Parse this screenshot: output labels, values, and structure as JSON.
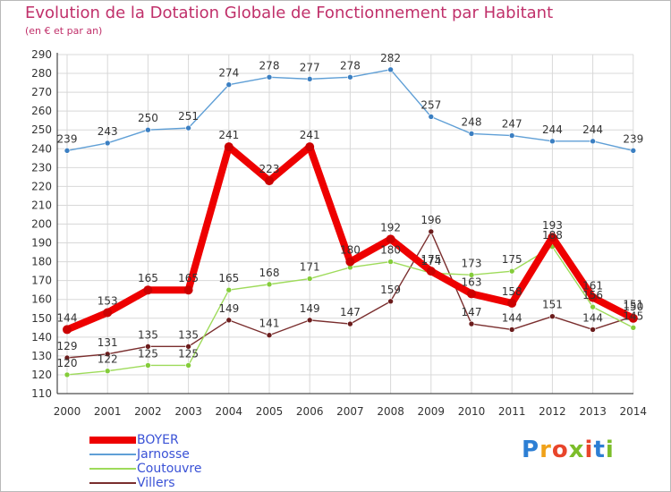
{
  "title": "Evolution de la Dotation Globale de Fonctionnement par Habitant",
  "subtitle": "(en € et par an)",
  "logo": "Proxiti",
  "colors": {
    "title": "#c0306a",
    "legend_text": "#3a52d6",
    "grid": "#d8d8d8",
    "axis": "#222222"
  },
  "chart_data": {
    "type": "line",
    "title": "Evolution de la Dotation Globale de Fonctionnement par Habitant",
    "subtitle": "(en € et par an)",
    "xlabel": "",
    "ylabel": "",
    "ylim": [
      110,
      290
    ],
    "ytick_step": 10,
    "grid": true,
    "legend_position": "bottom-left",
    "categories": [
      "2000",
      "2001",
      "2002",
      "2003",
      "2004",
      "2005",
      "2006",
      "2007",
      "2008",
      "2009",
      "2010",
      "2011",
      "2012",
      "2013",
      "2014"
    ],
    "series": [
      {
        "name": "BOYER",
        "color": "#ee0000",
        "marker_color": "#cc0000",
        "width": "thick",
        "values": [
          144,
          153,
          165,
          165,
          241,
          223,
          241,
          180,
          192,
          175,
          163,
          158,
          193,
          161,
          150
        ],
        "labels": [
          "144",
          "153",
          "165",
          "165",
          "241",
          "223",
          "241",
          "180",
          "192",
          "175",
          "163",
          "158",
          "193",
          "161",
          "150"
        ]
      },
      {
        "name": "Jarnosse",
        "color": "#5f9fd6",
        "marker_color": "#3b7fc2",
        "width": "thin",
        "values": [
          239,
          243,
          250,
          251,
          274,
          278,
          277,
          278,
          282,
          257,
          248,
          247,
          244,
          244,
          239
        ],
        "labels": [
          "239",
          "243",
          "250",
          "251",
          "274",
          "278",
          "277",
          "278",
          "282",
          "257",
          "248",
          "247",
          "244",
          "244",
          "239"
        ]
      },
      {
        "name": "Coutouvre",
        "color": "#9edb5a",
        "marker_color": "#84cc3a",
        "width": "thin",
        "values": [
          120,
          122,
          125,
          125,
          165,
          168,
          171,
          177,
          180,
          174,
          173,
          175,
          188,
          156,
          145
        ],
        "labels": [
          "120",
          "122",
          "125",
          "125",
          "165",
          "168",
          "171",
          "",
          "180",
          "174",
          "173",
          "175",
          "188",
          "156",
          "145"
        ]
      },
      {
        "name": "Villers",
        "color": "#7a2e2e",
        "marker_color": "#6b1c1c",
        "width": "thin",
        "values": [
          129,
          131,
          135,
          135,
          149,
          141,
          149,
          147,
          159,
          196,
          147,
          144,
          151,
          144,
          151
        ],
        "labels": [
          "129",
          "131",
          "135",
          "135",
          "149",
          "141",
          "149",
          "147",
          "159",
          "196",
          "147",
          "144",
          "151",
          "144",
          "151"
        ]
      }
    ]
  }
}
